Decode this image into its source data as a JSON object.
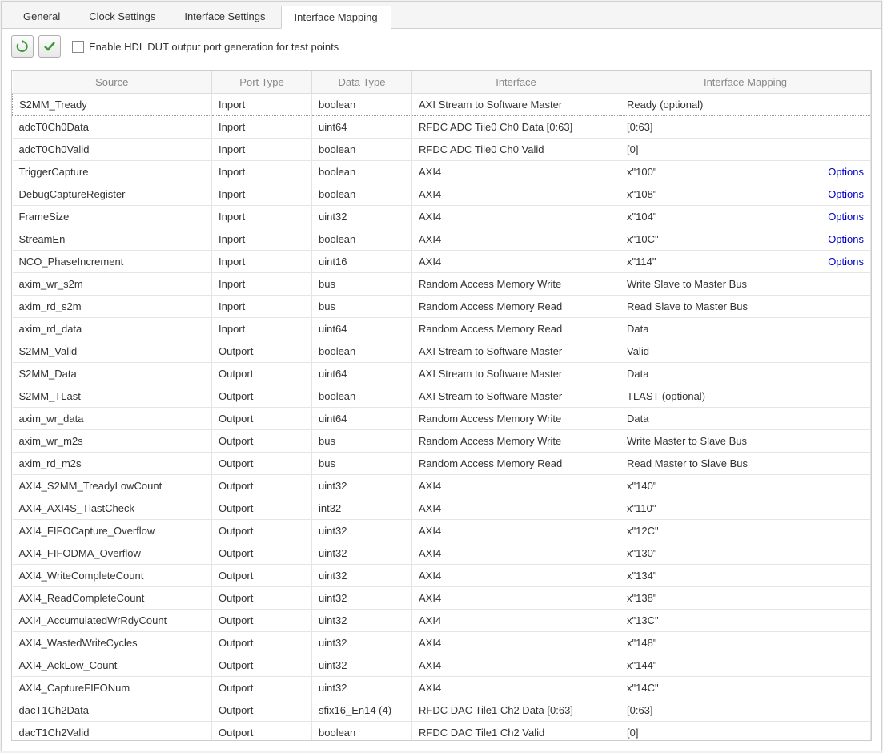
{
  "tabs": [
    "General",
    "Clock Settings",
    "Interface Settings",
    "Interface Mapping"
  ],
  "active_tab_index": 3,
  "checkbox_label": "Enable HDL DUT output port generation for test points",
  "checkbox_checked": false,
  "toolbar": {
    "refresh_icon_color": "#3a9a3a",
    "check_icon_color": "#3a9a3a"
  },
  "table": {
    "columns": [
      "Source",
      "Port Type",
      "Data Type",
      "Interface",
      "Interface Mapping"
    ],
    "options_label": "Options",
    "rows": [
      {
        "source": "S2MM_Tready",
        "port_type": "Inport",
        "data_type": "boolean",
        "interface": "AXI Stream to Software Master",
        "mapping": "Ready (optional)",
        "has_options": false
      },
      {
        "source": "adcT0Ch0Data",
        "port_type": "Inport",
        "data_type": "uint64",
        "interface": "RFDC ADC Tile0 Ch0 Data [0:63]",
        "mapping": "[0:63]",
        "has_options": false
      },
      {
        "source": "adcT0Ch0Valid",
        "port_type": "Inport",
        "data_type": "boolean",
        "interface": "RFDC ADC Tile0 Ch0 Valid",
        "mapping": "[0]",
        "has_options": false
      },
      {
        "source": "TriggerCapture",
        "port_type": "Inport",
        "data_type": "boolean",
        "interface": "AXI4",
        "mapping": "x\"100\"",
        "has_options": true
      },
      {
        "source": "DebugCaptureRegister",
        "port_type": "Inport",
        "data_type": "boolean",
        "interface": "AXI4",
        "mapping": "x\"108\"",
        "has_options": true
      },
      {
        "source": "FrameSize",
        "port_type": "Inport",
        "data_type": "uint32",
        "interface": "AXI4",
        "mapping": "x\"104\"",
        "has_options": true
      },
      {
        "source": "StreamEn",
        "port_type": "Inport",
        "data_type": "boolean",
        "interface": "AXI4",
        "mapping": "x\"10C\"",
        "has_options": true
      },
      {
        "source": "NCO_PhaseIncrement",
        "port_type": "Inport",
        "data_type": "uint16",
        "interface": "AXI4",
        "mapping": "x\"114\"",
        "has_options": true
      },
      {
        "source": "axim_wr_s2m",
        "port_type": "Inport",
        "data_type": "bus",
        "interface": "Random Access Memory Write",
        "mapping": "Write Slave to Master Bus",
        "has_options": false
      },
      {
        "source": "axim_rd_s2m",
        "port_type": "Inport",
        "data_type": "bus",
        "interface": "Random Access Memory Read",
        "mapping": "Read Slave to Master Bus",
        "has_options": false
      },
      {
        "source": "axim_rd_data",
        "port_type": "Inport",
        "data_type": "uint64",
        "interface": "Random Access Memory Read",
        "mapping": "Data",
        "has_options": false
      },
      {
        "source": "S2MM_Valid",
        "port_type": "Outport",
        "data_type": "boolean",
        "interface": "AXI Stream to Software Master",
        "mapping": "Valid",
        "has_options": false
      },
      {
        "source": "S2MM_Data",
        "port_type": "Outport",
        "data_type": "uint64",
        "interface": "AXI Stream to Software Master",
        "mapping": "Data",
        "has_options": false
      },
      {
        "source": "S2MM_TLast",
        "port_type": "Outport",
        "data_type": "boolean",
        "interface": "AXI Stream to Software Master",
        "mapping": "TLAST (optional)",
        "has_options": false
      },
      {
        "source": "axim_wr_data",
        "port_type": "Outport",
        "data_type": "uint64",
        "interface": "Random Access Memory Write",
        "mapping": "Data",
        "has_options": false
      },
      {
        "source": "axim_wr_m2s",
        "port_type": "Outport",
        "data_type": "bus",
        "interface": "Random Access Memory Write",
        "mapping": "Write Master to Slave Bus",
        "has_options": false
      },
      {
        "source": "axim_rd_m2s",
        "port_type": "Outport",
        "data_type": "bus",
        "interface": "Random Access Memory Read",
        "mapping": "Read Master to Slave Bus",
        "has_options": false
      },
      {
        "source": "AXI4_S2MM_TreadyLowCount",
        "port_type": "Outport",
        "data_type": "uint32",
        "interface": "AXI4",
        "mapping": "x\"140\"",
        "has_options": false
      },
      {
        "source": "AXI4_AXI4S_TlastCheck",
        "port_type": "Outport",
        "data_type": "int32",
        "interface": "AXI4",
        "mapping": "x\"110\"",
        "has_options": false
      },
      {
        "source": "AXI4_FIFOCapture_Overflow",
        "port_type": "Outport",
        "data_type": "uint32",
        "interface": "AXI4",
        "mapping": "x\"12C\"",
        "has_options": false
      },
      {
        "source": "AXI4_FIFODMA_Overflow",
        "port_type": "Outport",
        "data_type": "uint32",
        "interface": "AXI4",
        "mapping": "x\"130\"",
        "has_options": false
      },
      {
        "source": "AXI4_WriteCompleteCount",
        "port_type": "Outport",
        "data_type": "uint32",
        "interface": "AXI4",
        "mapping": "x\"134\"",
        "has_options": false
      },
      {
        "source": "AXI4_ReadCompleteCount",
        "port_type": "Outport",
        "data_type": "uint32",
        "interface": "AXI4",
        "mapping": "x\"138\"",
        "has_options": false
      },
      {
        "source": "AXI4_AccumulatedWrRdyCount",
        "port_type": "Outport",
        "data_type": "uint32",
        "interface": "AXI4",
        "mapping": "x\"13C\"",
        "has_options": false
      },
      {
        "source": "AXI4_WastedWriteCycles",
        "port_type": "Outport",
        "data_type": "uint32",
        "interface": "AXI4",
        "mapping": "x\"148\"",
        "has_options": false
      },
      {
        "source": "AXI4_AckLow_Count",
        "port_type": "Outport",
        "data_type": "uint32",
        "interface": "AXI4",
        "mapping": "x\"144\"",
        "has_options": false
      },
      {
        "source": "AXI4_CaptureFIFONum",
        "port_type": "Outport",
        "data_type": "uint32",
        "interface": "AXI4",
        "mapping": "x\"14C\"",
        "has_options": false
      },
      {
        "source": "dacT1Ch2Data",
        "port_type": "Outport",
        "data_type": "sfix16_En14 (4)",
        "interface": "RFDC DAC Tile1 Ch2 Data [0:63]",
        "mapping": "[0:63]",
        "has_options": false
      },
      {
        "source": "dacT1Ch2Valid",
        "port_type": "Outport",
        "data_type": "boolean",
        "interface": "RFDC DAC Tile1 Ch2 Valid",
        "mapping": "[0]",
        "has_options": false
      }
    ]
  },
  "colors": {
    "header_text": "#888888",
    "cell_text": "#333333",
    "link_color": "#0000cc",
    "border": "#dddddd",
    "background": "#ffffff"
  }
}
